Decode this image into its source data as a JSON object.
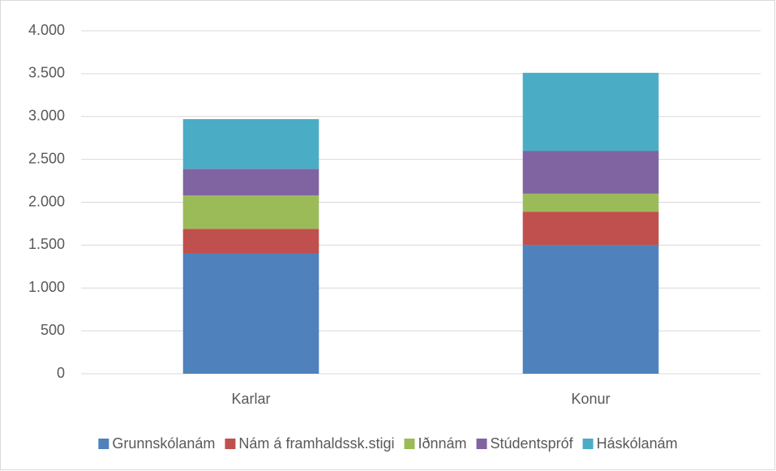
{
  "chart_data": {
    "type": "bar",
    "stacked": true,
    "categories": [
      "Karlar",
      "Konur"
    ],
    "series": [
      {
        "name": "Grunnskólanám",
        "color": "#4f81bd",
        "values": [
          1400,
          1500
        ]
      },
      {
        "name": "Nám á framhaldssk.stigi",
        "color": "#c0504d",
        "values": [
          290,
          390
        ]
      },
      {
        "name": "Iðnnám",
        "color": "#9bbb59",
        "values": [
          390,
          210
        ]
      },
      {
        "name": "Stúdentspróf",
        "color": "#8064a2",
        "values": [
          310,
          500
        ]
      },
      {
        "name": "Háskólanám",
        "color": "#4bacc6",
        "values": [
          580,
          910
        ]
      }
    ],
    "ylim": [
      0,
      4000
    ],
    "yticks": [
      0,
      500,
      {
        "value": 1000,
        "label": "1.000"
      },
      {
        "value": 1500,
        "label": "1.500"
      },
      {
        "value": 2000,
        "label": "2.000"
      },
      {
        "value": 2500,
        "label": "2.500"
      },
      {
        "value": 3000,
        "label": "3.000"
      },
      {
        "value": 3500,
        "label": "3.500"
      },
      {
        "value": 4000,
        "label": "4.000"
      }
    ],
    "grid": true,
    "legend": "bottom"
  }
}
